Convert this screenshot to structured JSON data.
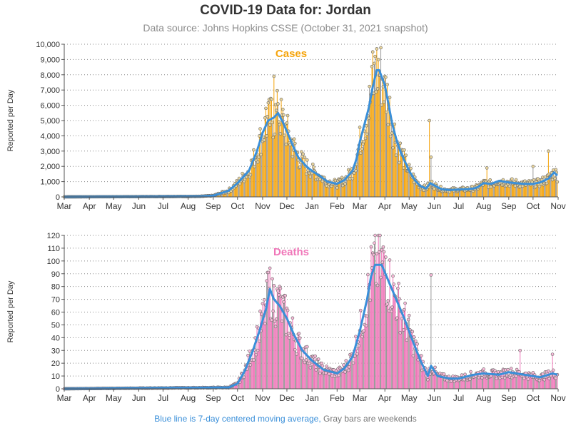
{
  "header": {
    "title": "COVID-19 Data for: Jordan",
    "subtitle": "Data source: Johns Hopkins CSSE (October 31, 2021 snapshot)"
  },
  "footer": {
    "avg_note": "Blue line is 7-day centered moving average,",
    "weekend_note": "Gray bars are weekends"
  },
  "colors": {
    "cases_bar": "#f5a40c",
    "cases_marker": "#e8d39a",
    "deaths_bar": "#f075b8",
    "deaths_marker": "#f7b9d8",
    "weekend_bar": "#9a9a9a",
    "moving_average": "#3a8fd9",
    "axis": "#555555",
    "grid": "#888888"
  },
  "chart_data": [
    {
      "type": "bar",
      "title": "Cases",
      "ylabel": "Reported per Day",
      "ylim": [
        0,
        10000
      ],
      "yticks": [
        0,
        1000,
        2000,
        3000,
        4000,
        5000,
        6000,
        7000,
        8000,
        9000,
        10000
      ],
      "ytick_labels": [
        "0",
        "1,000",
        "2,000",
        "3,000",
        "4,000",
        "5,000",
        "6,000",
        "7,000",
        "8,000",
        "9,000",
        "10,000"
      ],
      "xtick_labels": [
        "Mar",
        "Apr",
        "May",
        "Jun",
        "Jul",
        "Aug",
        "Sep",
        "Oct",
        "Nov",
        "Dec",
        "Jan",
        "Feb",
        "Mar",
        "Apr",
        "May",
        "Jun",
        "Jul",
        "Aug",
        "Sep",
        "Oct",
        "Nov"
      ],
      "xtick_dates": [
        "2020-03-01",
        "2020-04-01",
        "2020-05-01",
        "2020-06-01",
        "2020-07-01",
        "2020-08-01",
        "2020-09-01",
        "2020-10-01",
        "2020-11-01",
        "2020-12-01",
        "2021-01-01",
        "2021-02-01",
        "2021-03-01",
        "2021-04-01",
        "2021-05-01",
        "2021-06-01",
        "2021-07-01",
        "2021-08-01",
        "2021-09-01",
        "2021-10-01",
        "2021-11-01"
      ],
      "date_range": [
        "2020-03-01",
        "2021-10-31"
      ],
      "grid": "horizontal dotted",
      "series": [
        {
          "name": "7-day centered moving average",
          "points": [
            [
              "2020-03-01",
              0
            ],
            [
              "2020-08-15",
              30
            ],
            [
              "2020-09-01",
              80
            ],
            [
              "2020-09-20",
              400
            ],
            [
              "2020-10-01",
              900
            ],
            [
              "2020-10-15",
              1700
            ],
            [
              "2020-10-25",
              3000
            ],
            [
              "2020-11-01",
              4200
            ],
            [
              "2020-11-08",
              5000
            ],
            [
              "2020-11-15",
              5200
            ],
            [
              "2020-11-20",
              5500
            ],
            [
              "2020-11-25",
              5000
            ],
            [
              "2020-12-01",
              4300
            ],
            [
              "2020-12-08",
              3400
            ],
            [
              "2020-12-15",
              2600
            ],
            [
              "2020-12-25",
              2000
            ],
            [
              "2021-01-01",
              1700
            ],
            [
              "2021-01-10",
              1400
            ],
            [
              "2021-01-20",
              1000
            ],
            [
              "2021-02-01",
              850
            ],
            [
              "2021-02-10",
              1100
            ],
            [
              "2021-02-20",
              1700
            ],
            [
              "2021-02-25",
              2500
            ],
            [
              "2021-03-01",
              3600
            ],
            [
              "2021-03-06",
              4600
            ],
            [
              "2021-03-12",
              5800
            ],
            [
              "2021-03-17",
              7200
            ],
            [
              "2021-03-22",
              8300
            ],
            [
              "2021-03-25",
              8300
            ],
            [
              "2021-04-01",
              7300
            ],
            [
              "2021-04-05",
              6200
            ],
            [
              "2021-04-10",
              4800
            ],
            [
              "2021-04-15",
              3800
            ],
            [
              "2021-04-20",
              3000
            ],
            [
              "2021-04-25",
              2400
            ],
            [
              "2021-05-01",
              1700
            ],
            [
              "2021-05-08",
              1100
            ],
            [
              "2021-05-15",
              700
            ],
            [
              "2021-05-22",
              550
            ],
            [
              "2021-05-27",
              900
            ],
            [
              "2021-06-01",
              750
            ],
            [
              "2021-06-10",
              500
            ],
            [
              "2021-06-20",
              450
            ],
            [
              "2021-07-01",
              480
            ],
            [
              "2021-07-10",
              500
            ],
            [
              "2021-07-20",
              550
            ],
            [
              "2021-07-25",
              650
            ],
            [
              "2021-08-01",
              900
            ],
            [
              "2021-08-10",
              850
            ],
            [
              "2021-08-20",
              1050
            ],
            [
              "2021-09-01",
              950
            ],
            [
              "2021-09-10",
              900
            ],
            [
              "2021-09-20",
              850
            ],
            [
              "2021-10-01",
              850
            ],
            [
              "2021-10-10",
              950
            ],
            [
              "2021-10-20",
              1200
            ],
            [
              "2021-10-27",
              1600
            ],
            [
              "2021-10-31",
              1400
            ]
          ]
        },
        {
          "name": "daily spikes",
          "points": [
            [
              "2020-11-15",
              7900
            ],
            [
              "2020-11-12",
              6400
            ],
            [
              "2020-11-05",
              5800
            ],
            [
              "2020-11-20",
              6100
            ],
            [
              "2021-03-17",
              9500
            ],
            [
              "2021-03-20",
              9200
            ],
            [
              "2021-03-24",
              9000
            ],
            [
              "2021-04-01",
              7900
            ],
            [
              "2021-05-26",
              5000
            ],
            [
              "2021-05-28",
              2600
            ],
            [
              "2021-10-20",
              3000
            ],
            [
              "2021-08-05",
              1900
            ],
            [
              "2021-10-01",
              2000
            ]
          ]
        }
      ]
    },
    {
      "type": "bar",
      "title": "Deaths",
      "ylabel": "Reported per Day",
      "ylim": [
        0,
        120
      ],
      "yticks": [
        0,
        10,
        20,
        30,
        40,
        50,
        60,
        70,
        80,
        90,
        100,
        110,
        120
      ],
      "ytick_labels": [
        "0",
        "10",
        "20",
        "30",
        "40",
        "50",
        "60",
        "70",
        "80",
        "90",
        "100",
        "110",
        "120"
      ],
      "xtick_labels": [
        "Mar",
        "Apr",
        "May",
        "Jun",
        "Jul",
        "Aug",
        "Sep",
        "Oct",
        "Nov",
        "Dec",
        "Jan",
        "Feb",
        "Mar",
        "Apr",
        "May",
        "Jun",
        "Jul",
        "Aug",
        "Sep",
        "Oct",
        "Nov"
      ],
      "xtick_dates": [
        "2020-03-01",
        "2020-04-01",
        "2020-05-01",
        "2020-06-01",
        "2020-07-01",
        "2020-08-01",
        "2020-09-01",
        "2020-10-01",
        "2020-11-01",
        "2020-12-01",
        "2021-01-01",
        "2021-02-01",
        "2021-03-01",
        "2021-04-01",
        "2021-05-01",
        "2021-06-01",
        "2021-07-01",
        "2021-08-01",
        "2021-09-01",
        "2021-10-01",
        "2021-11-01"
      ],
      "date_range": [
        "2020-03-01",
        "2021-10-31"
      ],
      "grid": "horizontal dotted",
      "series": [
        {
          "name": "7-day centered moving average",
          "points": [
            [
              "2020-03-01",
              0
            ],
            [
              "2020-09-20",
              1
            ],
            [
              "2020-10-01",
              4
            ],
            [
              "2020-10-10",
              14
            ],
            [
              "2020-10-20",
              30
            ],
            [
              "2020-10-28",
              45
            ],
            [
              "2020-11-05",
              62
            ],
            [
              "2020-11-10",
              78
            ],
            [
              "2020-11-15",
              70
            ],
            [
              "2020-11-22",
              65
            ],
            [
              "2020-12-01",
              55
            ],
            [
              "2020-12-10",
              42
            ],
            [
              "2020-12-20",
              30
            ],
            [
              "2021-01-01",
              22
            ],
            [
              "2021-01-15",
              15
            ],
            [
              "2021-02-01",
              12
            ],
            [
              "2021-02-10",
              16
            ],
            [
              "2021-02-20",
              25
            ],
            [
              "2021-03-01",
              45
            ],
            [
              "2021-03-10",
              70
            ],
            [
              "2021-03-15",
              88
            ],
            [
              "2021-03-20",
              97
            ],
            [
              "2021-03-28",
              97
            ],
            [
              "2021-04-05",
              85
            ],
            [
              "2021-04-15",
              70
            ],
            [
              "2021-04-25",
              55
            ],
            [
              "2021-05-05",
              38
            ],
            [
              "2021-05-15",
              22
            ],
            [
              "2021-05-24",
              10
            ],
            [
              "2021-05-28",
              18
            ],
            [
              "2021-06-05",
              10
            ],
            [
              "2021-06-20",
              8
            ],
            [
              "2021-07-01",
              8
            ],
            [
              "2021-07-20",
              11
            ],
            [
              "2021-08-01",
              12
            ],
            [
              "2021-08-20",
              11
            ],
            [
              "2021-09-01",
              13
            ],
            [
              "2021-09-20",
              11
            ],
            [
              "2021-10-10",
              9
            ],
            [
              "2021-10-25",
              12
            ],
            [
              "2021-10-31",
              11
            ]
          ]
        },
        {
          "name": "daily spikes",
          "points": [
            [
              "2020-11-07",
              91
            ],
            [
              "2020-11-13",
              86
            ],
            [
              "2020-11-22",
              80
            ],
            [
              "2021-03-25",
              107
            ],
            [
              "2021-03-30",
              111
            ],
            [
              "2021-04-02",
              103
            ],
            [
              "2021-05-28",
              89
            ],
            [
              "2021-09-15",
              30
            ],
            [
              "2021-10-25",
              27
            ]
          ]
        }
      ]
    }
  ]
}
